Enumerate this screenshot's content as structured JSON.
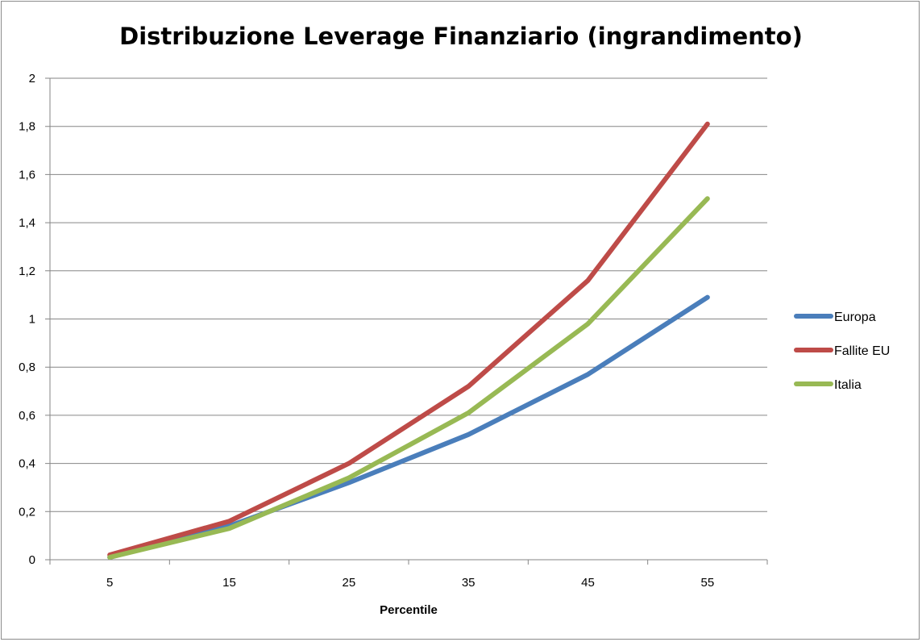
{
  "chart_data": {
    "type": "line",
    "title": "Distribuzione Leverage Finanziario (ingrandimento)",
    "xlabel": "Percentile",
    "ylabel": "",
    "categories": [
      "5",
      "15",
      "25",
      "35",
      "45",
      "55"
    ],
    "ylim": [
      0,
      2
    ],
    "yticks": [
      "0",
      "0,2",
      "0,4",
      "0,6",
      "0,8",
      "1",
      "1,2",
      "1,4",
      "1,6",
      "1,8",
      "2"
    ],
    "grid": true,
    "legend_position": "right",
    "series": [
      {
        "name": "Europa",
        "color": "#4a7ebb",
        "values": [
          0.01,
          0.14,
          0.32,
          0.52,
          0.77,
          1.09
        ]
      },
      {
        "name": "Fallite EU",
        "color": "#be4b48",
        "values": [
          0.02,
          0.16,
          0.4,
          0.72,
          1.16,
          1.81
        ]
      },
      {
        "name": "Italia",
        "color": "#98b954",
        "values": [
          0.01,
          0.13,
          0.34,
          0.61,
          0.98,
          1.5
        ]
      }
    ]
  }
}
